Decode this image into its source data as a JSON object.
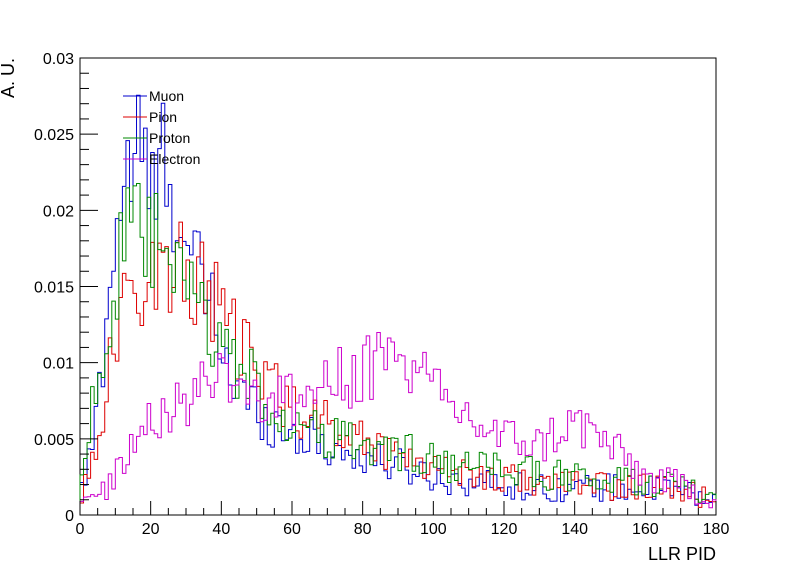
{
  "chart_data": {
    "type": "line",
    "xlabel": "LLR PID",
    "ylabel": "A. U.",
    "xlim": [
      0,
      180
    ],
    "ylim": [
      0,
      0.03
    ],
    "x_ticks": [
      0,
      20,
      40,
      60,
      80,
      100,
      120,
      140,
      160,
      180
    ],
    "x_tick_labels": [
      "0",
      "20",
      "40",
      "60",
      "80",
      "100",
      "120",
      "140",
      "160",
      "180"
    ],
    "y_ticks": [
      0,
      0.005,
      0.01,
      0.015,
      0.02,
      0.025,
      0.03
    ],
    "y_tick_labels": [
      "0",
      "0.005",
      "0.01",
      "0.015",
      "0.02",
      "0.025",
      "0.03"
    ],
    "grid": false,
    "legend_position": "top-left",
    "bin_width": 1,
    "series": [
      {
        "name": "Muon",
        "color": "#0000cc",
        "x": [
          0,
          4,
          8,
          10,
          12,
          14,
          16,
          18,
          20,
          22,
          24,
          26,
          28,
          30,
          32,
          35,
          38,
          40,
          45,
          50,
          55,
          60,
          65,
          70,
          75,
          80,
          85,
          90,
          95,
          100,
          110,
          120,
          130,
          140,
          150,
          160,
          170,
          180
        ],
        "values": [
          0.001,
          0.005,
          0.014,
          0.019,
          0.021,
          0.023,
          0.024,
          0.023,
          0.021,
          0.021,
          0.024,
          0.022,
          0.02,
          0.017,
          0.016,
          0.015,
          0.013,
          0.011,
          0.008,
          0.007,
          0.006,
          0.0055,
          0.005,
          0.0045,
          0.004,
          0.0038,
          0.0035,
          0.0032,
          0.003,
          0.0025,
          0.0022,
          0.002,
          0.0018,
          0.0018,
          0.0018,
          0.0017,
          0.0016,
          0.0008
        ]
      },
      {
        "name": "Pion",
        "color": "#dd0000",
        "x": [
          0,
          4,
          8,
          10,
          12,
          14,
          16,
          18,
          20,
          22,
          24,
          26,
          28,
          30,
          32,
          35,
          38,
          40,
          45,
          50,
          55,
          60,
          65,
          70,
          75,
          80,
          85,
          90,
          95,
          100,
          110,
          120,
          130,
          140,
          150,
          160,
          170,
          180
        ],
        "values": [
          0.001,
          0.004,
          0.009,
          0.011,
          0.013,
          0.014,
          0.015,
          0.016,
          0.016,
          0.016,
          0.016,
          0.016,
          0.016,
          0.0155,
          0.0155,
          0.015,
          0.014,
          0.013,
          0.011,
          0.0095,
          0.0085,
          0.007,
          0.0065,
          0.006,
          0.0055,
          0.005,
          0.0045,
          0.004,
          0.0038,
          0.0032,
          0.0028,
          0.0024,
          0.0022,
          0.002,
          0.0019,
          0.0018,
          0.0016,
          0.0008
        ]
      },
      {
        "name": "Proton",
        "color": "#008800",
        "x": [
          0,
          4,
          8,
          10,
          12,
          14,
          16,
          18,
          20,
          22,
          24,
          26,
          28,
          30,
          32,
          35,
          38,
          40,
          45,
          50,
          55,
          60,
          65,
          70,
          75,
          80,
          85,
          90,
          95,
          100,
          110,
          120,
          130,
          140,
          150,
          160,
          170,
          180
        ],
        "values": [
          0.002,
          0.008,
          0.012,
          0.015,
          0.017,
          0.018,
          0.018,
          0.018,
          0.018,
          0.0175,
          0.017,
          0.016,
          0.015,
          0.0145,
          0.014,
          0.013,
          0.012,
          0.011,
          0.0095,
          0.0085,
          0.007,
          0.006,
          0.0055,
          0.005,
          0.005,
          0.0045,
          0.0042,
          0.0042,
          0.004,
          0.0035,
          0.003,
          0.003,
          0.0028,
          0.0024,
          0.0022,
          0.0022,
          0.002,
          0.0008
        ]
      },
      {
        "name": "Electron",
        "color": "#cc00cc",
        "x": [
          0,
          4,
          8,
          10,
          12,
          14,
          16,
          18,
          20,
          22,
          24,
          26,
          28,
          30,
          32,
          35,
          38,
          40,
          45,
          50,
          55,
          60,
          65,
          70,
          75,
          80,
          85,
          90,
          95,
          100,
          105,
          110,
          115,
          120,
          125,
          130,
          135,
          140,
          145,
          150,
          155,
          160,
          165,
          170,
          175,
          180
        ],
        "values": [
          0.0005,
          0.001,
          0.002,
          0.003,
          0.0035,
          0.004,
          0.005,
          0.006,
          0.007,
          0.007,
          0.0065,
          0.0065,
          0.007,
          0.0075,
          0.008,
          0.009,
          0.009,
          0.0095,
          0.009,
          0.008,
          0.0075,
          0.0075,
          0.008,
          0.0085,
          0.009,
          0.0095,
          0.01,
          0.0105,
          0.0095,
          0.008,
          0.007,
          0.0065,
          0.0055,
          0.005,
          0.005,
          0.0045,
          0.0055,
          0.006,
          0.0055,
          0.0045,
          0.0035,
          0.0025,
          0.0022,
          0.002,
          0.0015,
          0.0008
        ]
      }
    ]
  }
}
